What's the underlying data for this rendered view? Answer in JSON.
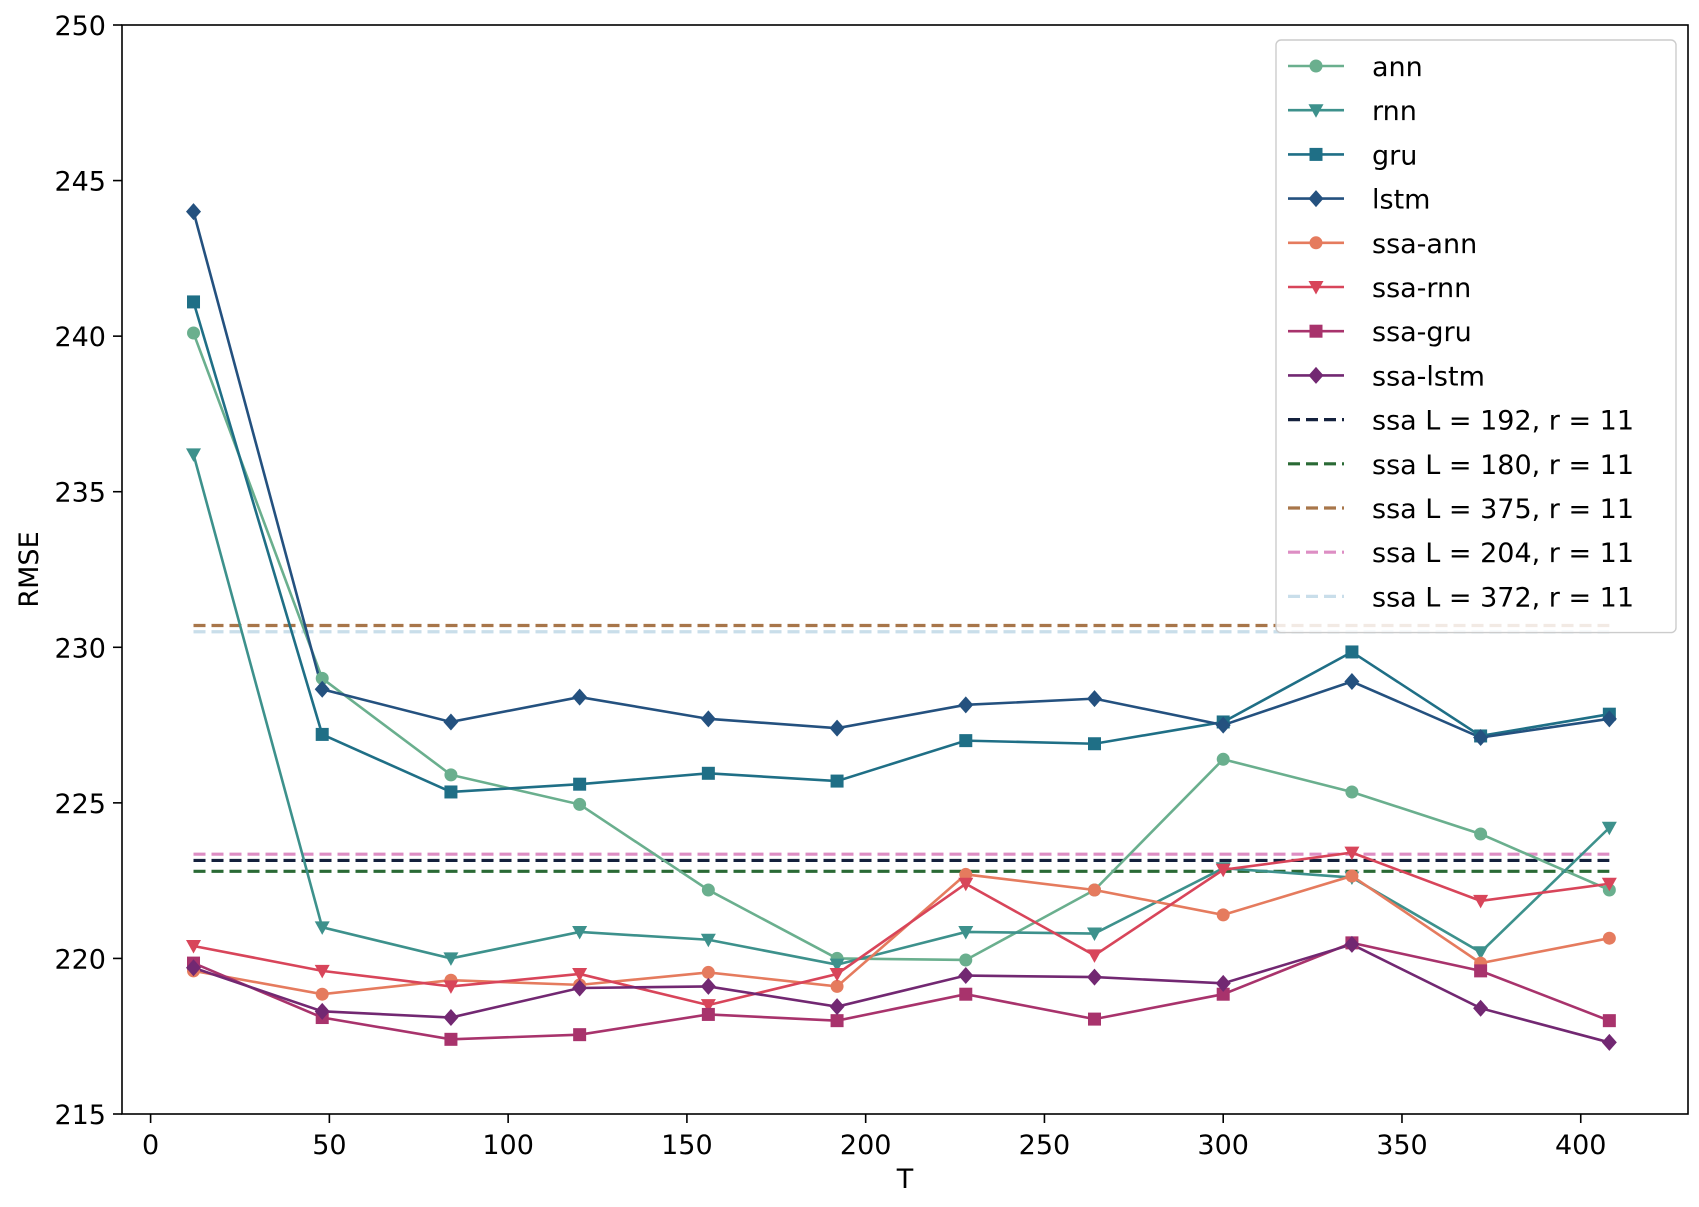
{
  "chart_data": {
    "type": "line",
    "xlabel": "T",
    "ylabel": "RMSE",
    "xlim": [
      -8,
      430
    ],
    "ylim": [
      215,
      250
    ],
    "xticks": [
      0,
      50,
      100,
      150,
      200,
      250,
      300,
      350,
      400
    ],
    "yticks": [
      215,
      220,
      225,
      230,
      235,
      240,
      245,
      250
    ],
    "grid": false,
    "legend_position": "top-right",
    "x": [
      12,
      48,
      84,
      120,
      156,
      192,
      228,
      264,
      300,
      336,
      372,
      408
    ],
    "series": [
      {
        "name": "ann",
        "color": "#6aaf8e",
        "marker": "circle",
        "values": [
          240.1,
          229.0,
          225.9,
          224.95,
          222.2,
          220.0,
          219.95,
          222.2,
          226.4,
          225.35,
          224.0,
          222.2
        ]
      },
      {
        "name": "rnn",
        "color": "#3d918c",
        "marker": "triangle-down",
        "values": [
          236.2,
          221.0,
          220.0,
          220.85,
          220.6,
          219.8,
          220.85,
          220.8,
          222.9,
          222.6,
          220.2,
          224.2
        ]
      },
      {
        "name": "gru",
        "color": "#1f6f86",
        "marker": "square",
        "values": [
          241.1,
          227.2,
          225.35,
          225.6,
          225.95,
          225.7,
          227.0,
          226.9,
          227.6,
          229.85,
          227.15,
          227.85
        ]
      },
      {
        "name": "lstm",
        "color": "#24517f",
        "marker": "diamond",
        "values": [
          244.0,
          228.65,
          227.6,
          228.4,
          227.7,
          227.4,
          228.15,
          228.35,
          227.5,
          228.9,
          227.1,
          227.7
        ]
      },
      {
        "name": "ssa-ann",
        "color": "#e57b5e",
        "marker": "circle",
        "values": [
          219.6,
          218.85,
          219.3,
          219.15,
          219.55,
          219.1,
          222.7,
          222.2,
          221.4,
          222.65,
          219.85,
          220.65
        ]
      },
      {
        "name": "ssa-rnn",
        "color": "#d8455a",
        "marker": "triangle-down",
        "values": [
          220.4,
          219.6,
          219.1,
          219.5,
          218.5,
          219.5,
          222.4,
          220.1,
          222.85,
          223.4,
          221.85,
          222.4
        ]
      },
      {
        "name": "ssa-gru",
        "color": "#a8336c",
        "marker": "square",
        "values": [
          219.85,
          218.1,
          217.4,
          217.55,
          218.2,
          218.0,
          218.85,
          218.05,
          218.85,
          220.5,
          219.6,
          218.0
        ]
      },
      {
        "name": "ssa-lstm",
        "color": "#722872",
        "marker": "diamond",
        "values": [
          219.7,
          218.3,
          218.1,
          219.05,
          219.1,
          218.45,
          219.45,
          219.4,
          219.2,
          220.45,
          218.4,
          217.3
        ]
      }
    ],
    "reference_lines": [
      {
        "name": "ssa L = 192, r = 11",
        "color": "#14213d",
        "y": 223.15,
        "x_range": [
          12,
          408
        ]
      },
      {
        "name": "ssa L = 180, r = 11",
        "color": "#2a6a35",
        "y": 222.8,
        "x_range": [
          12,
          408
        ]
      },
      {
        "name": "ssa L = 375, r = 11",
        "color": "#a8764a",
        "y": 230.7,
        "x_range": [
          12,
          408
        ]
      },
      {
        "name": "ssa L = 204, r = 11",
        "color": "#dd8ec4",
        "y": 223.35,
        "x_range": [
          12,
          408
        ]
      },
      {
        "name": "ssa L = 372, r = 11",
        "color": "#c9deea",
        "y": 230.5,
        "x_range": [
          12,
          408
        ]
      }
    ]
  }
}
